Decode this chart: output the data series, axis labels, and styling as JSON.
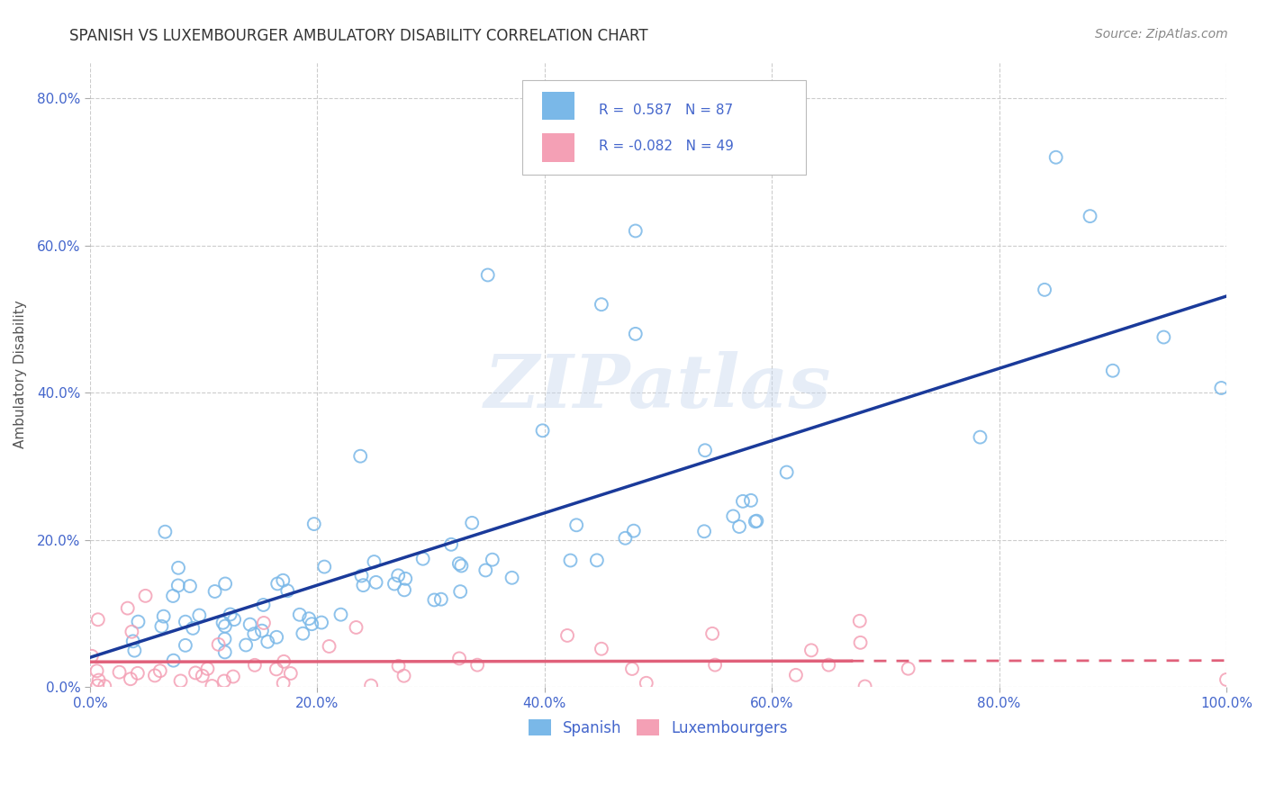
{
  "title": "SPANISH VS LUXEMBOURGER AMBULATORY DISABILITY CORRELATION CHART",
  "source": "Source: ZipAtlas.com",
  "ylabel": "Ambulatory Disability",
  "legend_labels": [
    "Spanish",
    "Luxembourgers"
  ],
  "spanish_R": "0.587",
  "spanish_N": "87",
  "lux_R": "-0.082",
  "lux_N": "49",
  "spanish_color": "#7ab8e8",
  "lux_color": "#f4a0b5",
  "spanish_line_color": "#1a3a9a",
  "lux_line_color": "#e0607a",
  "background_color": "#ffffff",
  "grid_color": "#cccccc",
  "watermark": "ZIPatlas",
  "tick_color": "#4466cc",
  "title_color": "#333333",
  "source_color": "#888888"
}
